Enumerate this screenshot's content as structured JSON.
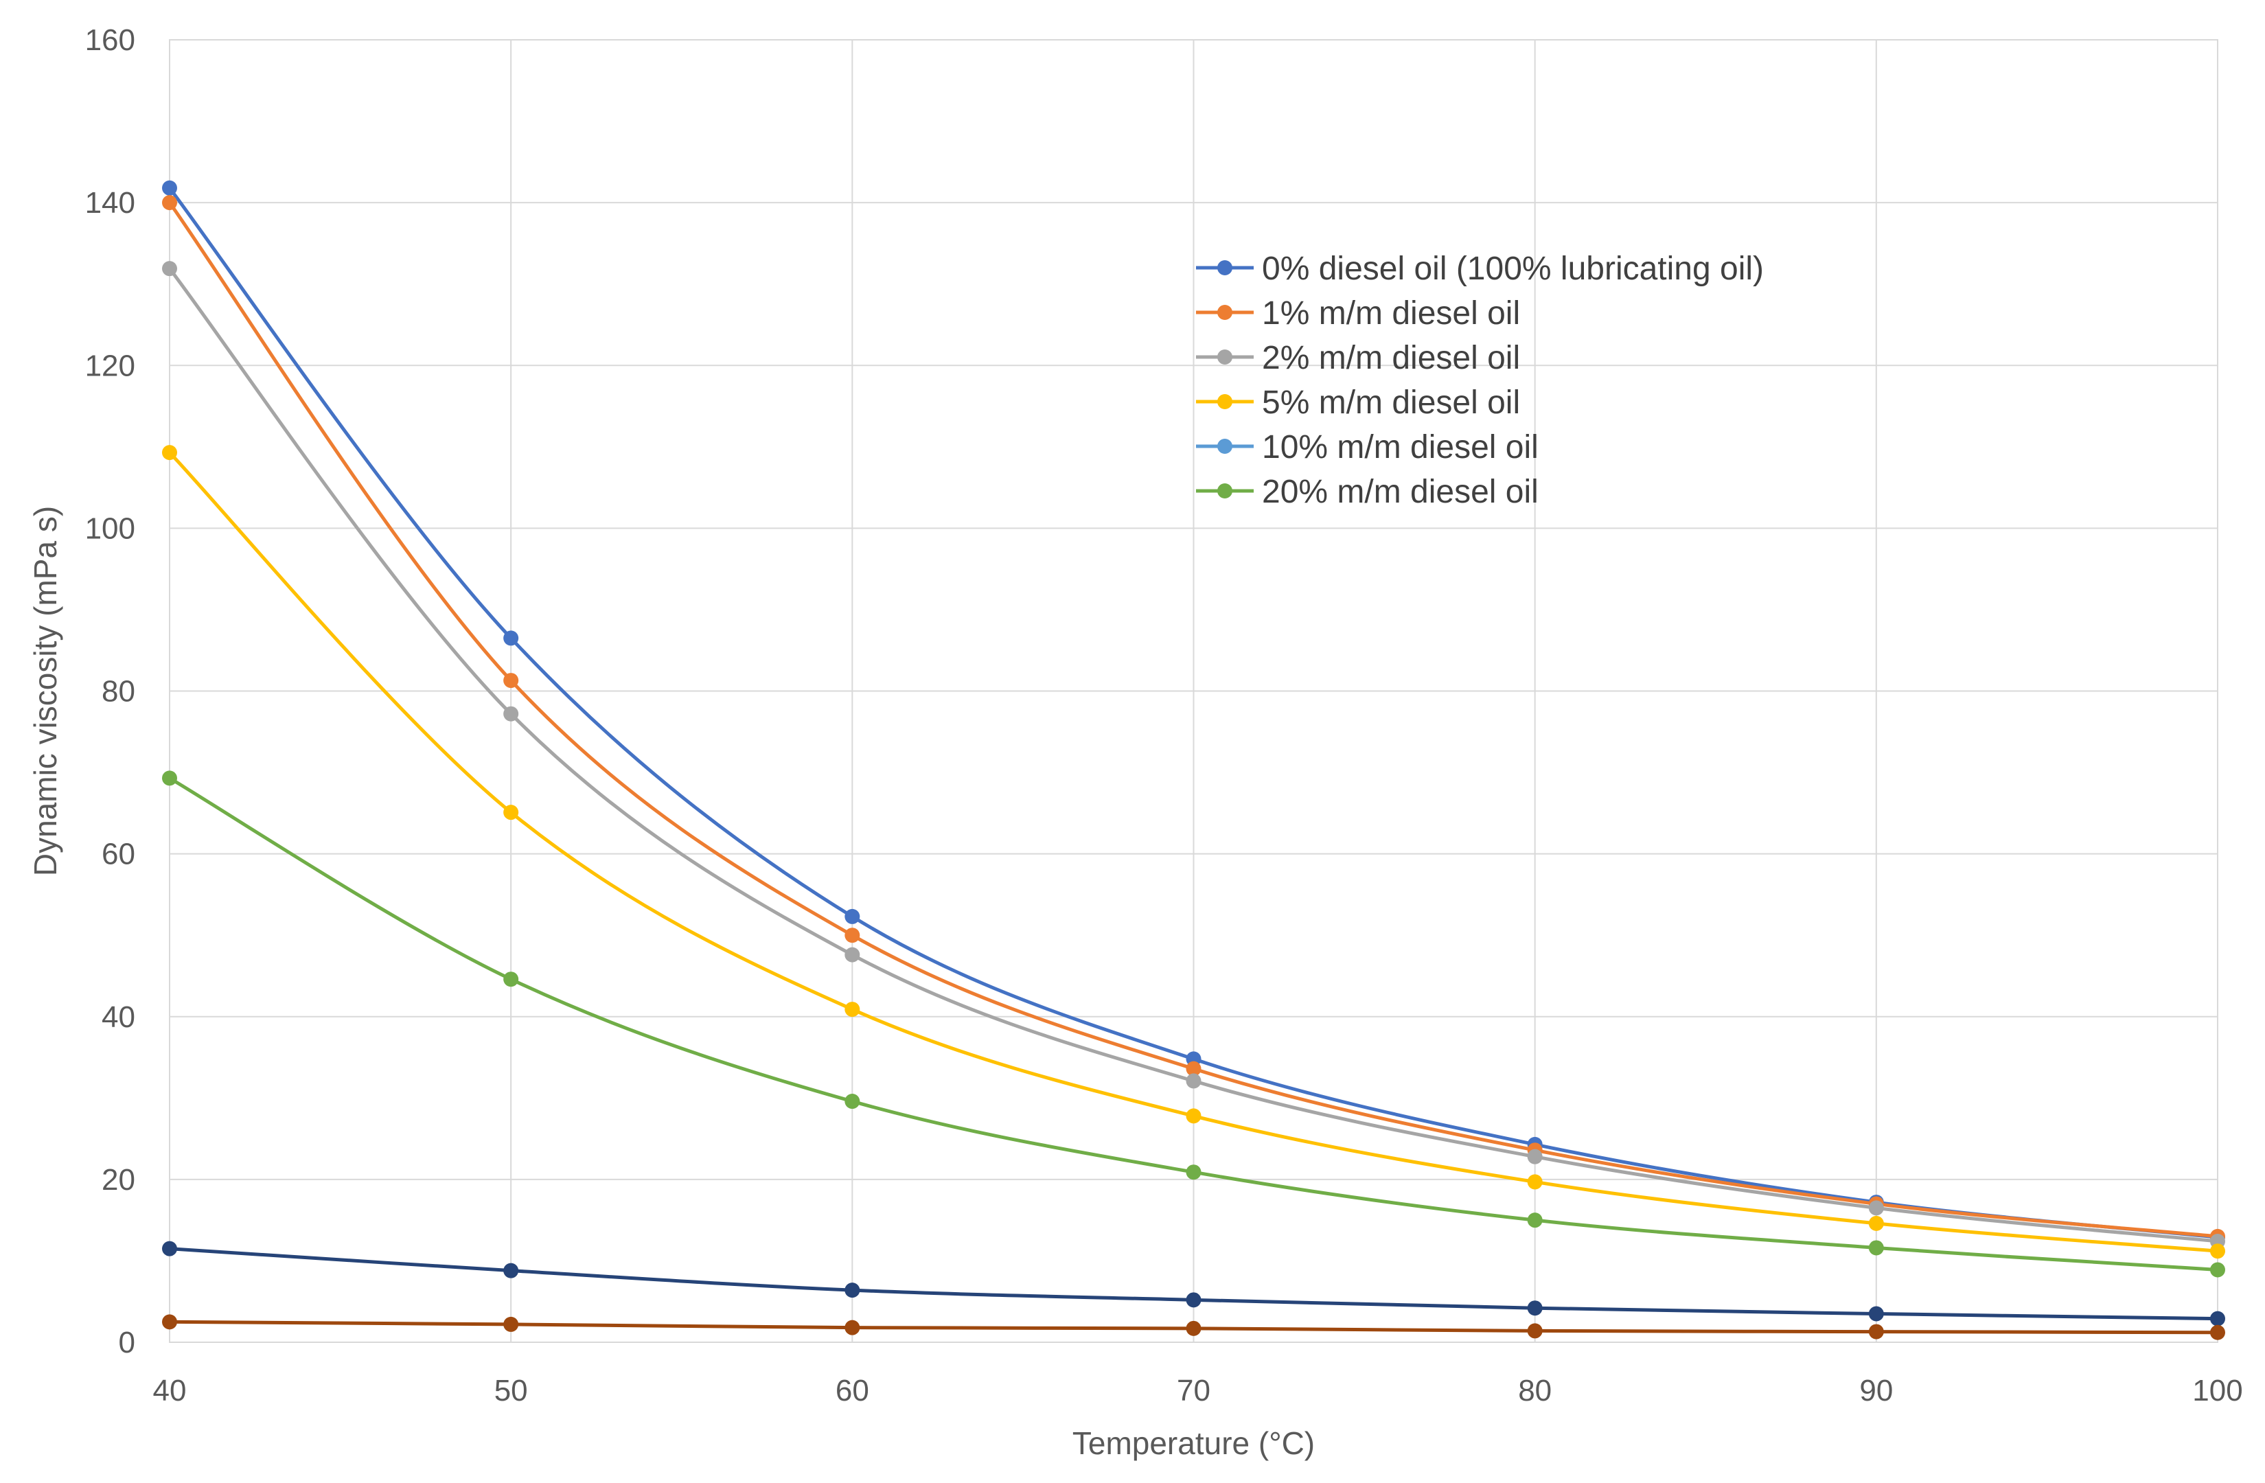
{
  "chart_data": {
    "type": "line",
    "title": "",
    "xlabel": "Temperature (°C)",
    "ylabel": "Dynamic viscosity (mPa s)",
    "x": [
      40,
      50,
      60,
      70,
      80,
      90,
      100
    ],
    "xlim": [
      40,
      100
    ],
    "ylim": [
      0,
      160
    ],
    "xticks": [
      40,
      50,
      60,
      70,
      80,
      90,
      100
    ],
    "yticks": [
      0,
      20,
      40,
      60,
      80,
      100,
      120,
      140,
      160
    ],
    "grid": true,
    "smooth": true,
    "legend_position": "upper-center-right",
    "series": [
      {
        "name": "0% diesel oil (100% lubricating oil)",
        "color": "#4472C4",
        "in_legend": true,
        "values": [
          141.8,
          86.5,
          52.3,
          34.8,
          24.3,
          17.2,
          12.9
        ]
      },
      {
        "name": "1% m/m diesel oil",
        "color": "#ED7D31",
        "in_legend": true,
        "values": [
          140.0,
          81.3,
          50.0,
          33.6,
          23.6,
          17.0,
          13.0
        ]
      },
      {
        "name": "2% m/m diesel oil",
        "color": "#A5A5A5",
        "in_legend": true,
        "values": [
          131.9,
          77.2,
          47.6,
          32.1,
          22.8,
          16.5,
          12.4
        ]
      },
      {
        "name": "5% m/m diesel oil",
        "color": "#FFC000",
        "in_legend": true,
        "values": [
          109.3,
          65.1,
          40.9,
          27.8,
          19.7,
          14.6,
          11.2
        ]
      },
      {
        "name": "10% m/m diesel oil",
        "color": "#5B9BD5",
        "in_legend": true,
        "values": null
      },
      {
        "name": "20% m/m diesel oil",
        "color": "#70AD47",
        "in_legend": true,
        "values": [
          69.3,
          44.6,
          29.6,
          20.9,
          15.0,
          11.6,
          8.9
        ]
      },
      {
        "name": "",
        "color": "#264478",
        "in_legend": false,
        "values": [
          11.5,
          8.8,
          6.4,
          5.2,
          4.2,
          3.5,
          2.9
        ]
      },
      {
        "name": "",
        "color": "#9E480E",
        "in_legend": false,
        "values": [
          2.5,
          2.2,
          1.8,
          1.7,
          1.4,
          1.3,
          1.2
        ]
      }
    ]
  }
}
